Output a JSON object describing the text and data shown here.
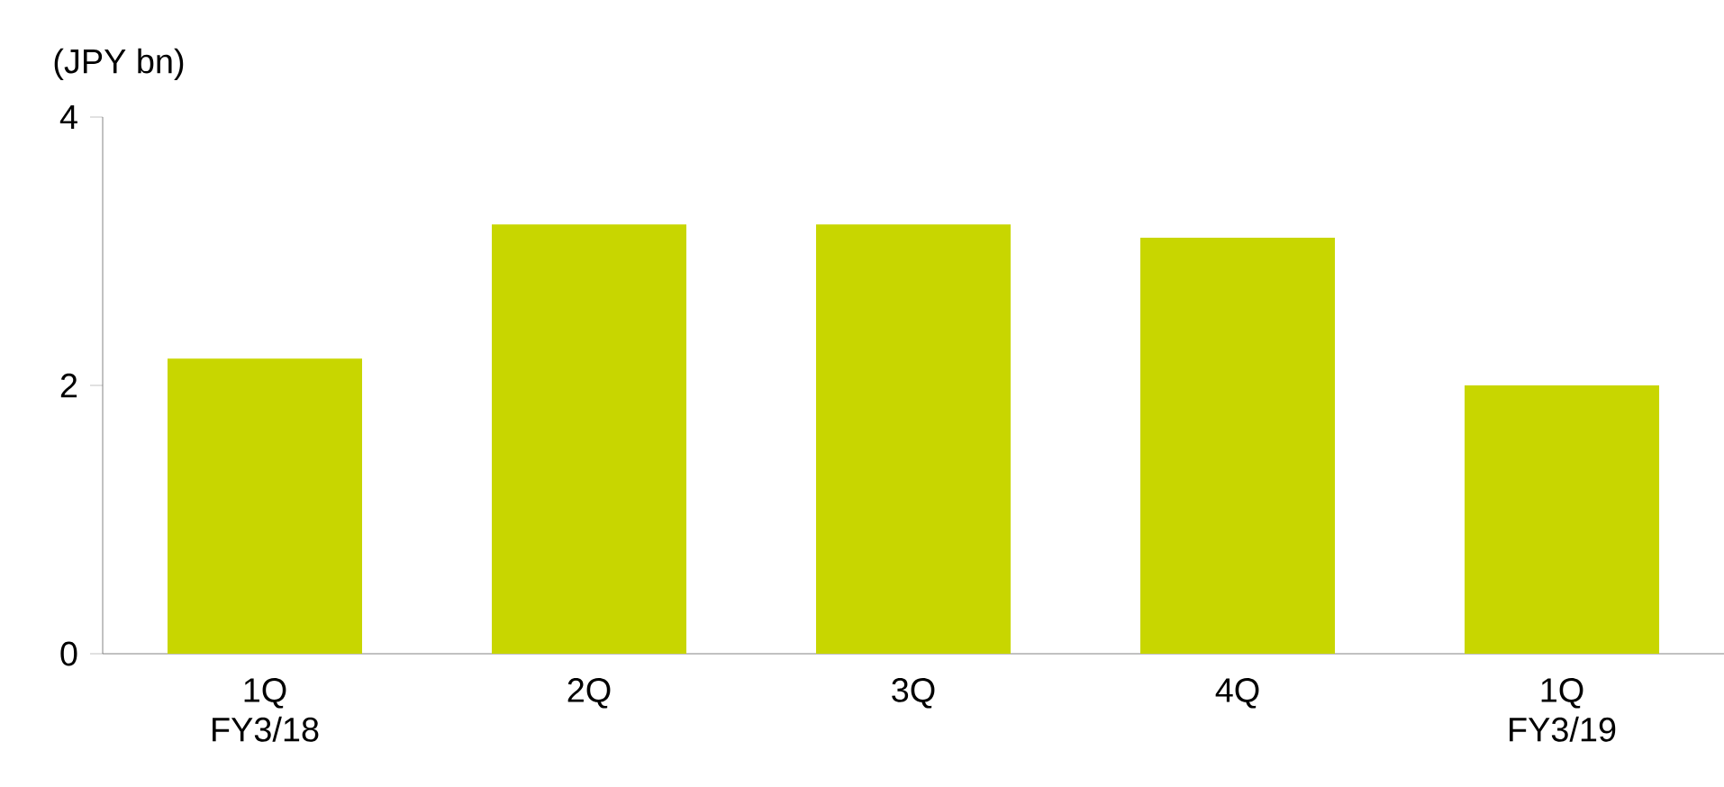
{
  "chart_data": {
    "type": "bar",
    "ylabel": "(JPY bn)",
    "categories": [
      "1Q FY3/18",
      "2Q",
      "3Q",
      "4Q",
      "1Q FY3/19"
    ],
    "values": [
      2.2,
      3.2,
      3.2,
      3.1,
      2.0
    ],
    "color": "#c8d600",
    "ylim": [
      0,
      4
    ],
    "yticks": [
      0,
      2,
      4
    ],
    "grid": false
  }
}
